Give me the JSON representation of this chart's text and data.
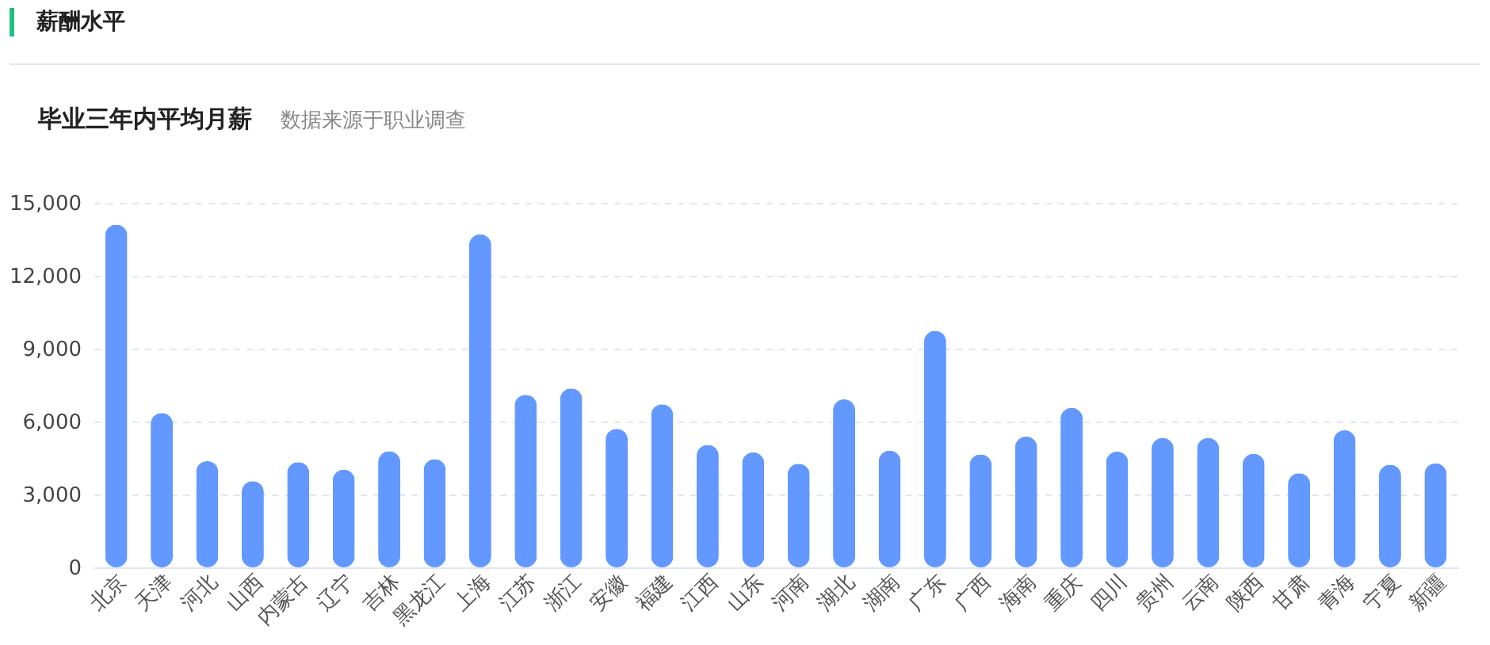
{
  "chart_data": {
    "type": "bar",
    "title": "毕业三年内平均月薪",
    "subtitle": "数据来源于职业调查",
    "annotations": [
      "薪酬水平"
    ],
    "categories": [
      "北京",
      "天津",
      "河北",
      "山西",
      "内蒙古",
      "辽宁",
      "吉林",
      "黑龙江",
      "上海",
      "江苏",
      "浙江",
      "安徽",
      "福建",
      "江西",
      "山东",
      "河南",
      "湖北",
      "湖南",
      "广东",
      "广西",
      "海南",
      "重庆",
      "四川",
      "贵州",
      "云南",
      "陕西",
      "甘肃",
      "青海",
      "宁夏",
      "新疆"
    ],
    "values": [
      14100,
      6350,
      4370,
      3550,
      4330,
      4020,
      4780,
      4450,
      13700,
      7100,
      7360,
      5700,
      6710,
      5040,
      4730,
      4260,
      6910,
      4800,
      9730,
      4650,
      5380,
      6560,
      4760,
      5320,
      5320,
      4670,
      3870,
      5640,
      4220,
      4280
    ],
    "color": "#6298ff",
    "ylim": [
      0,
      15000
    ],
    "yticks": [
      0,
      {
        "value": 3000,
        "label": "3,000"
      },
      {
        "value": 6000,
        "label": "6,000"
      },
      {
        "value": 9000,
        "label": "9,000"
      },
      {
        "value": 12000,
        "label": "12,000"
      },
      {
        "value": 15000,
        "label": "15,000"
      }
    ],
    "grid": "y"
  }
}
